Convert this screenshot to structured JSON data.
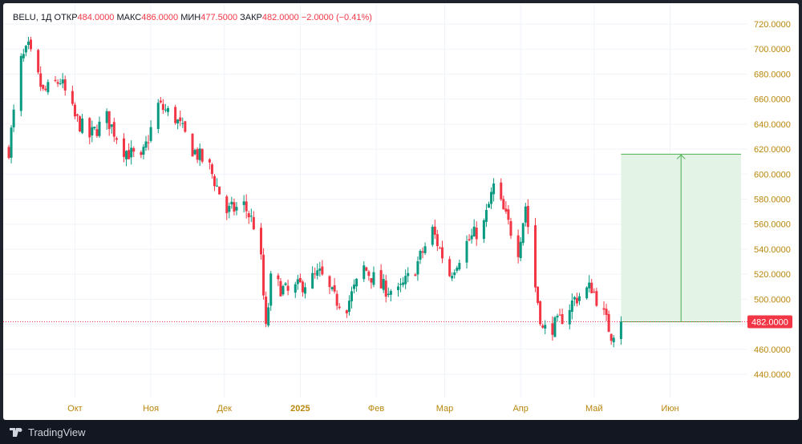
{
  "legend": {
    "symbol": "BELU",
    "interval": "1Д",
    "open_label": "ОТКР",
    "open_value": "484.0000",
    "high_label": "МАКС",
    "high_value": "486.0000",
    "low_label": "МИН",
    "low_value": "477.5000",
    "close_label": "ЗАКР",
    "close_value": "482.0000",
    "change": "−2.0000 (−0.41%)"
  },
  "price_badge": "482.0000",
  "footer": {
    "brand": "TradingView"
  },
  "colors": {
    "up": "#089981",
    "down": "#f23645",
    "grid": "#f0f3fa",
    "axis_text": "#b8860b",
    "badge": "#f23645",
    "target_fill": "#e3f3e6",
    "target_line": "#4caf50"
  },
  "chart_data": {
    "type": "candlestick",
    "ylim": [
      425,
      730
    ],
    "y_ticks": [
      "720.0000",
      "700.0000",
      "680.0000",
      "660.0000",
      "640.0000",
      "620.0000",
      "600.0000",
      "580.0000",
      "560.0000",
      "540.0000",
      "520.0000",
      "500.0000",
      "480.0000",
      "460.0000",
      "440.0000"
    ],
    "x_ticks": [
      {
        "label": "Окт",
        "date": "2024-10-01",
        "bold": false
      },
      {
        "label": "Ноя",
        "date": "2024-11-01",
        "bold": false
      },
      {
        "label": "Дек",
        "date": "2024-12-01",
        "bold": false
      },
      {
        "label": "2025",
        "date": "2025-01-01",
        "bold": true
      },
      {
        "label": "Фев",
        "date": "2025-02-01",
        "bold": false
      },
      {
        "label": "Мар",
        "date": "2025-03-01",
        "bold": false
      },
      {
        "label": "Апр",
        "date": "2025-04-01",
        "bold": false
      },
      {
        "label": "Май",
        "date": "2025-05-01",
        "bold": false
      },
      {
        "label": "Июн",
        "date": "2025-06-01",
        "bold": false
      }
    ],
    "x_range": [
      "2024-09-04",
      "2025-06-30"
    ],
    "last_price": 482,
    "target_range": {
      "start": "2025-05-12",
      "end": "2025-06-30",
      "from": 482,
      "to": 616
    },
    "anchors": [
      [
        "2024-09-04",
        620
      ],
      [
        "2024-09-09",
        690
      ],
      [
        "2024-09-12",
        700
      ],
      [
        "2024-09-18",
        665
      ],
      [
        "2024-09-25",
        675
      ],
      [
        "2024-10-01",
        645
      ],
      [
        "2024-10-07",
        630
      ],
      [
        "2024-10-14",
        645
      ],
      [
        "2024-10-21",
        620
      ],
      [
        "2024-10-28",
        610
      ],
      [
        "2024-11-04",
        655
      ],
      [
        "2024-11-11",
        645
      ],
      [
        "2024-11-18",
        620
      ],
      [
        "2024-11-25",
        605
      ],
      [
        "2024-12-02",
        570
      ],
      [
        "2024-12-09",
        575
      ],
      [
        "2024-12-13",
        560
      ],
      [
        "2024-12-16",
        530
      ],
      [
        "2024-12-18",
        475
      ],
      [
        "2024-12-20",
        515
      ],
      [
        "2024-12-27",
        505
      ],
      [
        "2025-01-09",
        520
      ],
      [
        "2025-01-15",
        500
      ],
      [
        "2025-01-20",
        495
      ],
      [
        "2025-01-27",
        525
      ],
      [
        "2025-02-03",
        510
      ],
      [
        "2025-02-10",
        505
      ],
      [
        "2025-02-17",
        525
      ],
      [
        "2025-02-24",
        555
      ],
      [
        "2025-03-03",
        520
      ],
      [
        "2025-03-10",
        545
      ],
      [
        "2025-03-17",
        560
      ],
      [
        "2025-03-21",
        590
      ],
      [
        "2025-03-26",
        565
      ],
      [
        "2025-03-31",
        540
      ],
      [
        "2025-04-03",
        575
      ],
      [
        "2025-04-07",
        510
      ],
      [
        "2025-04-10",
        475
      ],
      [
        "2025-04-16",
        480
      ],
      [
        "2025-04-23",
        500
      ],
      [
        "2025-04-30",
        510
      ],
      [
        "2025-05-05",
        487
      ],
      [
        "2025-05-08",
        472
      ],
      [
        "2025-05-12",
        482
      ]
    ]
  }
}
